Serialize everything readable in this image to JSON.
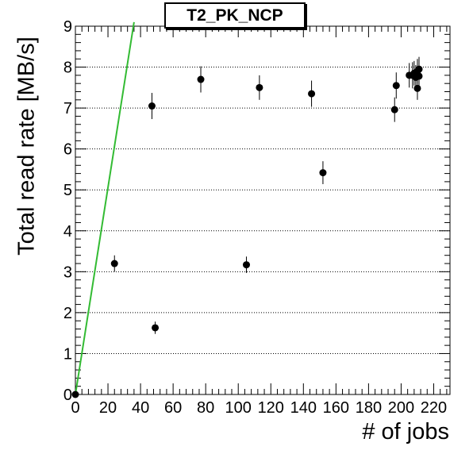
{
  "chart_data": {
    "type": "scatter",
    "title": "T2_PK_NCP",
    "xlabel": "# of jobs",
    "ylabel": "Total read rate [MB/s]",
    "xlim": [
      0,
      230
    ],
    "ylim": [
      0,
      9
    ],
    "xticks": [
      0,
      20,
      40,
      60,
      80,
      100,
      120,
      140,
      160,
      180,
      200,
      220
    ],
    "yticks": [
      0,
      1,
      2,
      3,
      4,
      5,
      6,
      7,
      8,
      9
    ],
    "grid": "horizontal dotted",
    "points": [
      {
        "x": 0,
        "y": 0.0,
        "err": 0.04
      },
      {
        "x": 24,
        "y": 3.2,
        "err": 0.2
      },
      {
        "x": 47,
        "y": 7.05,
        "err": 0.32
      },
      {
        "x": 49,
        "y": 1.63,
        "err": 0.15
      },
      {
        "x": 77,
        "y": 7.7,
        "err": 0.32
      },
      {
        "x": 105,
        "y": 3.17,
        "err": 0.2
      },
      {
        "x": 113,
        "y": 7.5,
        "err": 0.3
      },
      {
        "x": 145,
        "y": 7.35,
        "err": 0.32
      },
      {
        "x": 152,
        "y": 5.42,
        "err": 0.28
      },
      {
        "x": 196,
        "y": 6.96,
        "err": 0.3
      },
      {
        "x": 197,
        "y": 7.55,
        "err": 0.32
      },
      {
        "x": 205,
        "y": 7.8,
        "err": 0.3
      },
      {
        "x": 207,
        "y": 7.8,
        "err": 0.32
      },
      {
        "x": 208,
        "y": 7.85,
        "err": 0.3
      },
      {
        "x": 209,
        "y": 7.75,
        "err": 0.3
      },
      {
        "x": 210,
        "y": 7.9,
        "err": 0.3
      },
      {
        "x": 210,
        "y": 7.48,
        "err": 0.28
      },
      {
        "x": 211,
        "y": 7.78,
        "err": 0.3
      },
      {
        "x": 211,
        "y": 7.95,
        "err": 0.3
      }
    ],
    "reference_line": {
      "x": [
        0,
        36
      ],
      "y": [
        0,
        9.1
      ],
      "color": "#33bb33"
    },
    "colors": {
      "marker": "#000000",
      "line": "#33bb33",
      "grid": "#000000"
    }
  }
}
